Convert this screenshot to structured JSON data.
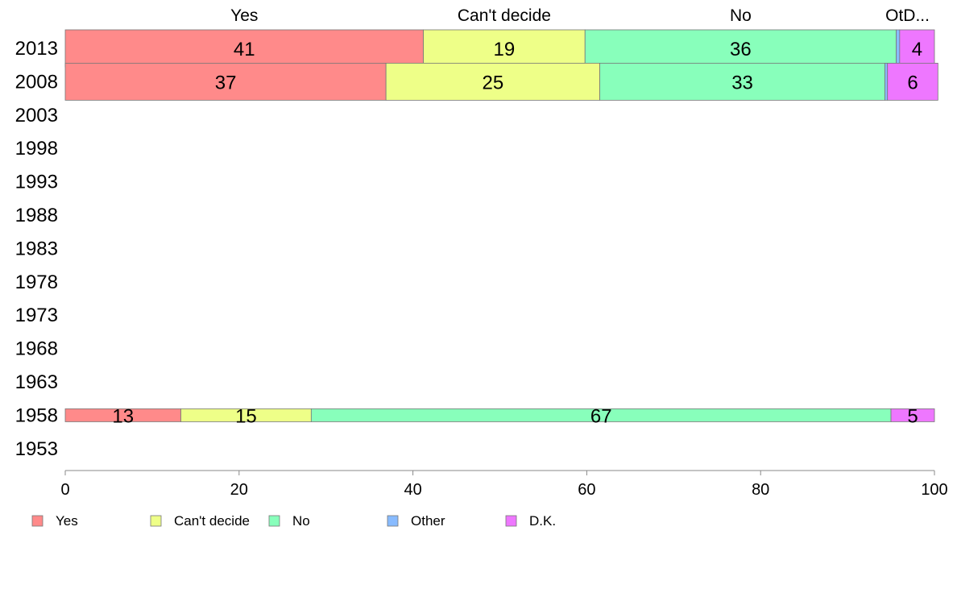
{
  "chart_data": {
    "type": "bar",
    "orientation": "horizontal",
    "stacked": true,
    "xlim": [
      0,
      100
    ],
    "x_ticks": [
      0,
      20,
      40,
      60,
      80,
      100
    ],
    "years": [
      "2013",
      "2008",
      "2003",
      "1998",
      "1993",
      "1988",
      "1983",
      "1978",
      "1973",
      "1968",
      "1963",
      "1958",
      "1953"
    ],
    "top_labels": [
      "Yes",
      "Can't decide",
      "No",
      "OtD..."
    ],
    "series": [
      {
        "name": "Yes",
        "color": "#FF8A8A"
      },
      {
        "name": "Can't decide",
        "color": "#EEFF88"
      },
      {
        "name": "No",
        "color": "#88FFBB"
      },
      {
        "name": "Other",
        "color": "#88BBFF"
      },
      {
        "name": "D.K.",
        "color": "#EE77FF"
      }
    ],
    "bars": [
      {
        "year": "2013",
        "values": [
          41.2,
          18.6,
          35.8,
          0.4,
          4.0
        ],
        "labels": [
          "41",
          "19",
          "36",
          "",
          "4"
        ],
        "height_scale": 1.0
      },
      {
        "year": "2008",
        "values": [
          36.9,
          24.6,
          32.8,
          0.3,
          5.8
        ],
        "labels": [
          "37",
          "25",
          "33",
          "",
          "6"
        ],
        "height_scale": 1.0
      },
      {
        "year": "1958",
        "values": [
          13.3,
          15.0,
          66.7,
          0.0,
          5.0
        ],
        "labels": [
          "13",
          "15",
          "67",
          "",
          "5"
        ],
        "height_scale": 0.35
      }
    ],
    "legend_position": "bottom"
  }
}
